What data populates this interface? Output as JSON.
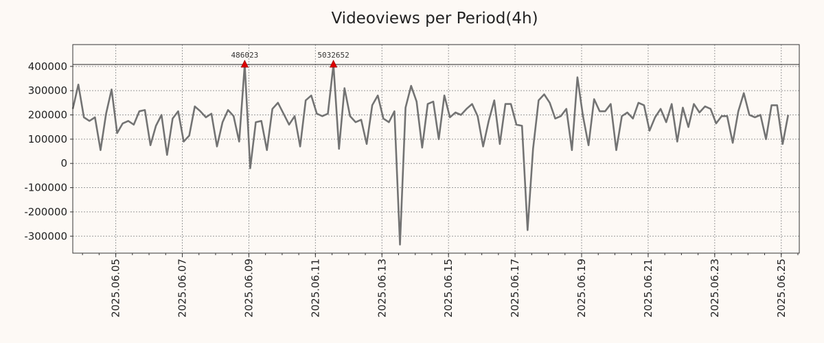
{
  "chart_data": {
    "type": "line",
    "title": "Videoviews per Period(4h)",
    "xlabel": "",
    "ylabel": "",
    "x_range": [
      "2025-06-03T17:00",
      "2025-06-25T13:00"
    ],
    "ylim": [
      -370000,
      490000
    ],
    "y_ticks": [
      400000,
      300000,
      200000,
      100000,
      0,
      -100000,
      -200000,
      -300000
    ],
    "x_ticks": [
      "2025.06.05",
      "2025.06.07",
      "2025.06.09",
      "2025.06.11",
      "2025.06.13",
      "2025.06.15",
      "2025.06.17",
      "2025.06.19",
      "2025.06.21",
      "2025.06.23",
      "2025.06.25"
    ],
    "grid": true,
    "line_color": "#737373",
    "marker_color": "#e00000",
    "reference_line": 408000,
    "series": [
      {
        "step_hours": 4,
        "values": [
          225000,
          325000,
          190000,
          175000,
          190000,
          55000,
          205000,
          305000,
          125000,
          165000,
          175000,
          160000,
          215000,
          220000,
          75000,
          155000,
          200000,
          35000,
          185000,
          215000,
          90000,
          115000,
          235000,
          215000,
          190000,
          205000,
          70000,
          170000,
          220000,
          195000,
          90000,
          408000,
          -20000,
          170000,
          175000,
          55000,
          225000,
          250000,
          205000,
          160000,
          195000,
          70000,
          260000,
          280000,
          205000,
          195000,
          205000,
          408000,
          60000,
          310000,
          195000,
          170000,
          180000,
          80000,
          240000,
          280000,
          185000,
          170000,
          215000,
          -335000,
          230000,
          320000,
          255000,
          65000,
          245000,
          255000,
          100000,
          280000,
          190000,
          210000,
          200000,
          225000,
          245000,
          195000,
          70000,
          175000,
          260000,
          80000,
          245000,
          245000,
          160000,
          155000,
          -275000,
          60000,
          260000,
          285000,
          250000,
          185000,
          195000,
          225000,
          55000,
          355000,
          195000,
          75000,
          265000,
          215000,
          215000,
          245000,
          55000,
          195000,
          210000,
          185000,
          250000,
          240000,
          135000,
          190000,
          225000,
          170000,
          245000,
          90000,
          230000,
          150000,
          245000,
          210000,
          235000,
          225000,
          165000,
          195000,
          195000,
          85000,
          215000,
          290000,
          200000,
          190000,
          200000,
          100000,
          240000,
          240000,
          80000,
          200000
        ]
      }
    ],
    "annotations": [
      {
        "index": 31,
        "label": "486023"
      },
      {
        "index": 47,
        "label": "5032652"
      }
    ]
  }
}
